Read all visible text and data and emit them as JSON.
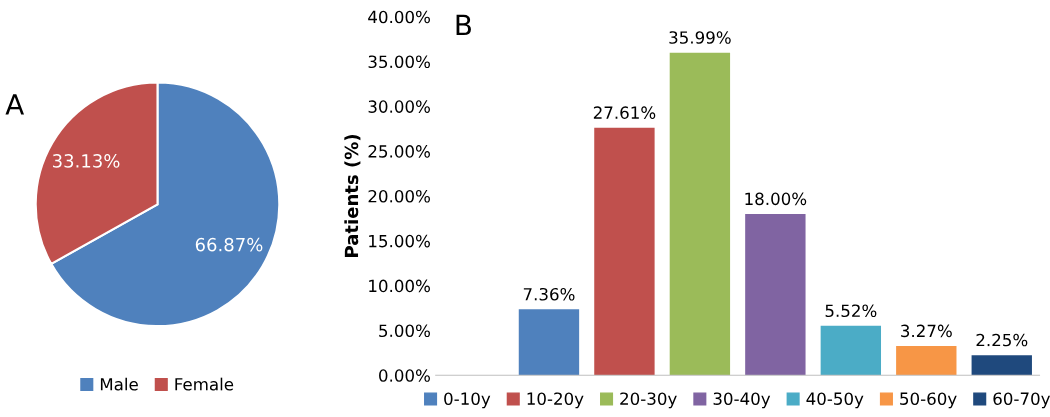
{
  "chart_data": [
    {
      "type": "pie",
      "title": "A",
      "categories": [
        "Male",
        "Female"
      ],
      "values": [
        66.87,
        33.13
      ],
      "colors": [
        "#4f81bd",
        "#c0504d"
      ],
      "value_labels": [
        "66.87%",
        "33.13%"
      ],
      "legend": "bottom"
    },
    {
      "type": "bar",
      "title": "B",
      "ylabel": "Patients (%)",
      "categories": [
        null,
        null,
        null,
        null,
        null,
        null,
        null,
        null
      ],
      "ylim": [
        0,
        40
      ],
      "yticks": [
        {
          "value": 0,
          "label": "0.00%"
        },
        {
          "value": 5,
          "label": "5.00%"
        },
        {
          "value": 10,
          "label": "10.00%"
        },
        {
          "value": 15,
          "label": "15.00%"
        },
        {
          "value": 20,
          "label": "20.00%"
        },
        {
          "value": 25,
          "label": "25.00%"
        },
        {
          "value": 30,
          "label": "30.00%"
        },
        {
          "value": 35,
          "label": "35.00%"
        },
        {
          "value": 40,
          "label": "40.00%"
        }
      ],
      "legend": "bottom",
      "series": [
        {
          "name": "0-10y",
          "color": "#4f81bd",
          "values": [
            null,
            7.36,
            null,
            null,
            null,
            null,
            null,
            null
          ],
          "value_labels": [
            null,
            "7.36%",
            null,
            null,
            null,
            null,
            null,
            null
          ]
        },
        {
          "name": "10-20y",
          "color": "#c0504d",
          "values": [
            null,
            null,
            27.61,
            null,
            null,
            null,
            null,
            null
          ],
          "value_labels": [
            null,
            null,
            "27.61%",
            null,
            null,
            null,
            null,
            null
          ]
        },
        {
          "name": "20-30y",
          "color": "#9bbb59",
          "values": [
            null,
            null,
            null,
            35.99,
            null,
            null,
            null,
            null
          ],
          "value_labels": [
            null,
            null,
            null,
            "35.99%",
            null,
            null,
            null,
            null
          ]
        },
        {
          "name": "30-40y",
          "color": "#8064a2",
          "values": [
            null,
            null,
            null,
            null,
            18.0,
            null,
            null,
            null
          ],
          "value_labels": [
            null,
            null,
            null,
            null,
            "18.00%",
            null,
            null,
            null
          ]
        },
        {
          "name": "40-50y",
          "color": "#4bacc6",
          "values": [
            null,
            null,
            null,
            null,
            null,
            5.52,
            null,
            null
          ],
          "value_labels": [
            null,
            null,
            null,
            null,
            null,
            "5.52%",
            null,
            null
          ]
        },
        {
          "name": "50-60y",
          "color": "#f79646",
          "values": [
            null,
            null,
            null,
            null,
            null,
            null,
            3.27,
            null
          ],
          "value_labels": [
            null,
            null,
            null,
            null,
            null,
            null,
            "3.27%",
            null
          ]
        },
        {
          "name": "60-70y",
          "color": "#1f497d",
          "values": [
            null,
            null,
            null,
            null,
            null,
            null,
            null,
            2.25
          ],
          "value_labels": [
            null,
            null,
            null,
            null,
            null,
            null,
            null,
            "2.25%"
          ]
        }
      ]
    }
  ]
}
